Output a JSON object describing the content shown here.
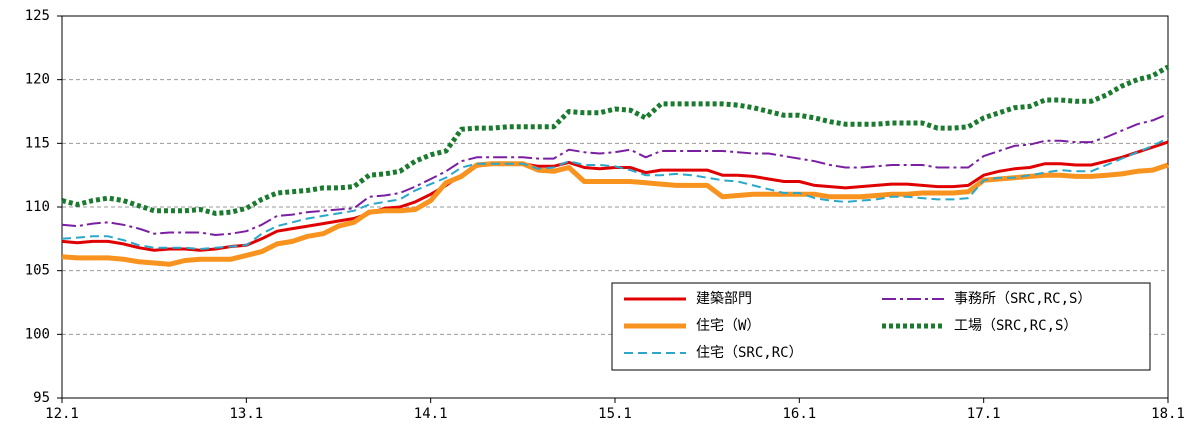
{
  "chart_data": {
    "type": "line",
    "categories": [
      "12.1",
      null,
      null,
      null,
      null,
      null,
      null,
      null,
      null,
      null,
      null,
      null,
      "13.1",
      null,
      null,
      null,
      null,
      null,
      null,
      null,
      null,
      null,
      null,
      null,
      "14.1",
      null,
      null,
      null,
      null,
      null,
      null,
      null,
      null,
      null,
      null,
      null,
      "15.1",
      null,
      null,
      null,
      null,
      null,
      null,
      null,
      null,
      null,
      null,
      null,
      "16.1",
      null,
      null,
      null,
      null,
      null,
      null,
      null,
      null,
      null,
      null,
      null,
      "17.1",
      null,
      null,
      null,
      null,
      null,
      null,
      null,
      null,
      null,
      null,
      null,
      "18.1"
    ],
    "series": [
      {
        "name": "建築部門",
        "color": "#e00000",
        "style": "solid",
        "linewidth": 3,
        "values": [
          107.3,
          107.2,
          107.3,
          107.3,
          107.1,
          106.8,
          106.6,
          106.7,
          106.7,
          106.6,
          106.7,
          106.9,
          107.0,
          107.5,
          108.1,
          108.3,
          108.5,
          108.7,
          108.9,
          109.1,
          109.5,
          109.9,
          110.0,
          110.4,
          111.0,
          111.7,
          112.5,
          113.2,
          113.4,
          113.4,
          113.4,
          113.2,
          113.2,
          113.5,
          113.1,
          113.0,
          113.1,
          113.1,
          112.7,
          112.9,
          112.9,
          112.9,
          112.9,
          112.5,
          112.5,
          112.4,
          112.2,
          112.0,
          112.0,
          111.7,
          111.6,
          111.5,
          111.6,
          111.7,
          111.8,
          111.8,
          111.7,
          111.6,
          111.6,
          111.7,
          112.5,
          112.8,
          113.0,
          113.1,
          113.4,
          113.4,
          113.3,
          113.3,
          113.6,
          113.9,
          114.3,
          114.7,
          115.1
        ]
      },
      {
        "name": "事務所（SRC,RC,S）",
        "color": "#7b1fa2",
        "style": "dashdot",
        "linewidth": 2,
        "values": [
          108.6,
          108.5,
          108.7,
          108.8,
          108.6,
          108.3,
          107.9,
          108.0,
          108.0,
          108.0,
          107.8,
          107.9,
          108.1,
          108.6,
          109.3,
          109.4,
          109.6,
          109.7,
          109.8,
          109.9,
          110.8,
          110.9,
          111.1,
          111.6,
          112.2,
          112.8,
          113.6,
          113.9,
          113.9,
          113.9,
          113.9,
          113.8,
          113.8,
          114.5,
          114.3,
          114.2,
          114.3,
          114.5,
          113.9,
          114.4,
          114.4,
          114.4,
          114.4,
          114.4,
          114.3,
          114.2,
          114.2,
          114.0,
          113.8,
          113.6,
          113.3,
          113.1,
          113.1,
          113.2,
          113.3,
          113.3,
          113.3,
          113.1,
          113.1,
          113.1,
          114.0,
          114.4,
          114.8,
          114.9,
          115.2,
          115.2,
          115.1,
          115.1,
          115.5,
          116.0,
          116.5,
          116.8,
          117.3
        ]
      },
      {
        "name": "住宅（W）",
        "color": "#f7931e",
        "style": "solid",
        "linewidth": 5,
        "values": [
          106.1,
          106.0,
          106.0,
          106.0,
          105.9,
          105.7,
          105.6,
          105.5,
          105.8,
          105.9,
          105.9,
          105.9,
          106.2,
          106.5,
          107.1,
          107.3,
          107.7,
          107.9,
          108.5,
          108.8,
          109.6,
          109.7,
          109.7,
          109.8,
          110.5,
          111.9,
          112.4,
          113.3,
          113.4,
          113.4,
          113.4,
          112.9,
          112.8,
          113.1,
          112.0,
          112.0,
          112.0,
          112.0,
          111.9,
          111.8,
          111.7,
          111.7,
          111.7,
          110.8,
          110.9,
          111.0,
          111.0,
          111.0,
          111.0,
          111.0,
          110.8,
          110.8,
          110.8,
          110.9,
          111.0,
          111.0,
          111.1,
          111.1,
          111.1,
          111.2,
          112.1,
          112.2,
          112.3,
          112.4,
          112.5,
          112.5,
          112.4,
          112.4,
          112.5,
          112.6,
          112.8,
          112.9,
          113.3
        ]
      },
      {
        "name": "工場（SRC,RC,S）",
        "color": "#1a7a2e",
        "style": "dotted",
        "linewidth": 5,
        "values": [
          110.5,
          110.2,
          110.5,
          110.7,
          110.5,
          110.1,
          109.7,
          109.7,
          109.7,
          109.8,
          109.5,
          109.6,
          109.9,
          110.6,
          111.1,
          111.2,
          111.3,
          111.5,
          111.5,
          111.6,
          112.5,
          112.6,
          112.8,
          113.6,
          114.1,
          114.4,
          116.1,
          116.2,
          116.2,
          116.3,
          116.3,
          116.3,
          116.3,
          117.5,
          117.4,
          117.4,
          117.7,
          117.6,
          117.0,
          118.1,
          118.1,
          118.1,
          118.1,
          118.1,
          118.0,
          117.8,
          117.5,
          117.2,
          117.2,
          117.0,
          116.7,
          116.5,
          116.5,
          116.5,
          116.6,
          116.6,
          116.6,
          116.2,
          116.2,
          116.3,
          117.0,
          117.4,
          117.8,
          117.9,
          118.4,
          118.4,
          118.3,
          118.3,
          118.8,
          119.5,
          120.0,
          120.3,
          121.0
        ]
      },
      {
        "name": "住宅（SRC,RC）",
        "color": "#2aa7c9",
        "style": "dashed",
        "linewidth": 2,
        "values": [
          107.5,
          107.6,
          107.7,
          107.7,
          107.4,
          107.0,
          106.8,
          106.8,
          106.8,
          106.7,
          106.8,
          106.9,
          107.0,
          107.9,
          108.5,
          108.8,
          109.1,
          109.3,
          109.5,
          109.7,
          110.2,
          110.4,
          110.6,
          111.3,
          111.8,
          112.3,
          113.1,
          113.4,
          113.4,
          113.4,
          113.4,
          113.0,
          113.1,
          113.6,
          113.3,
          113.3,
          113.2,
          112.9,
          112.5,
          112.5,
          112.6,
          112.5,
          112.3,
          112.1,
          112.0,
          111.7,
          111.4,
          111.1,
          111.1,
          110.7,
          110.5,
          110.4,
          110.5,
          110.6,
          110.8,
          110.8,
          110.7,
          110.6,
          110.6,
          110.7,
          112.1,
          112.3,
          112.3,
          112.5,
          112.7,
          112.9,
          112.8,
          112.8,
          113.3,
          113.8,
          114.3,
          114.8,
          115.4
        ]
      }
    ],
    "ylim": [
      95,
      125
    ],
    "yticks": [
      95,
      100,
      105,
      110,
      115,
      120,
      125
    ],
    "grid": true,
    "legend": "lower right"
  }
}
